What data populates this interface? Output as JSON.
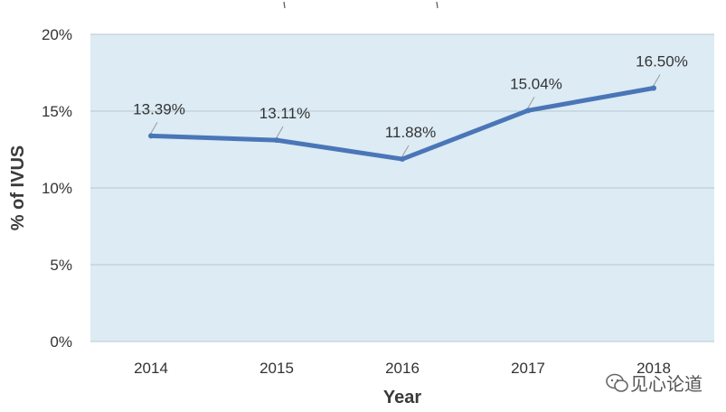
{
  "chart_data": {
    "type": "line",
    "categories": [
      "2014",
      "2015",
      "2016",
      "2017",
      "2018"
    ],
    "series": [
      {
        "values": [
          13.39,
          13.11,
          11.88,
          15.04,
          16.5
        ]
      }
    ],
    "data_labels": [
      "13.39%",
      "13.11%",
      "11.88%",
      "15.04%",
      "16.50%"
    ],
    "y_ticks": [
      0,
      5,
      10,
      15,
      20
    ],
    "y_tick_labels": [
      "0%",
      "5%",
      "10%",
      "15%",
      "20%"
    ],
    "xlabel": "Year",
    "ylabel": "% of IVUS",
    "ylim": [
      0,
      20
    ],
    "grid": true,
    "colors": {
      "line": "#4a76b8",
      "plot_bg": "#dcebf4",
      "grid": "#b9c7cf"
    }
  },
  "watermark": {
    "text": "见心论道",
    "icon": "wechat-bubble-icon"
  }
}
